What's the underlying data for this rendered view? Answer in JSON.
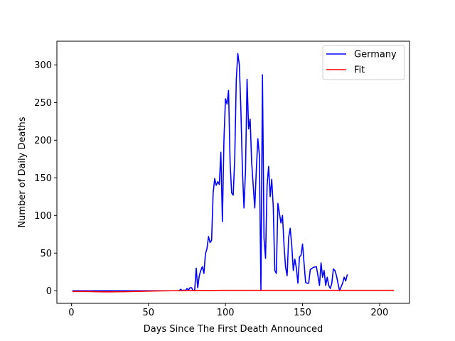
{
  "chart_data": {
    "type": "line",
    "title": "",
    "xlabel": "Days Since The First Death Announced",
    "ylabel": "Number of Daily Deaths",
    "xlim": [
      -9.4,
      219.4
    ],
    "ylim": [
      -16.75,
      331.5
    ],
    "x_ticks": [
      0,
      50,
      100,
      150,
      200
    ],
    "y_ticks": [
      0,
      50,
      100,
      150,
      200,
      250,
      300
    ],
    "grid": false,
    "legend_position": "top-right",
    "series": [
      {
        "name": "Germany",
        "color": "#0000ff",
        "points": [
          [
            1,
            0
          ],
          [
            10,
            0
          ],
          [
            20,
            0
          ],
          [
            30,
            0
          ],
          [
            40,
            0
          ],
          [
            50,
            0
          ],
          [
            60,
            0
          ],
          [
            70,
            0
          ],
          [
            71,
            2
          ],
          [
            72,
            0
          ],
          [
            73,
            1
          ],
          [
            74,
            0
          ],
          [
            75,
            3
          ],
          [
            76,
            1
          ],
          [
            77,
            4
          ],
          [
            78,
            4
          ],
          [
            79,
            0
          ],
          [
            80,
            0
          ],
          [
            81,
            30
          ],
          [
            82,
            4
          ],
          [
            83,
            20
          ],
          [
            84,
            27
          ],
          [
            85,
            32
          ],
          [
            86,
            23
          ],
          [
            87,
            49
          ],
          [
            88,
            56
          ],
          [
            89,
            72
          ],
          [
            90,
            64
          ],
          [
            91,
            67
          ],
          [
            92,
            130
          ],
          [
            93,
            149
          ],
          [
            94,
            140
          ],
          [
            95,
            145
          ],
          [
            96,
            141
          ],
          [
            97,
            184
          ],
          [
            98,
            92
          ],
          [
            99,
            200
          ],
          [
            100,
            255
          ],
          [
            101,
            248
          ],
          [
            102,
            266
          ],
          [
            103,
            170
          ],
          [
            104,
            130
          ],
          [
            105,
            127
          ],
          [
            106,
            175
          ],
          [
            107,
            280
          ],
          [
            108,
            315
          ],
          [
            109,
            300
          ],
          [
            110,
            240
          ],
          [
            111,
            160
          ],
          [
            112,
            110
          ],
          [
            113,
            160
          ],
          [
            114,
            281
          ],
          [
            115,
            215
          ],
          [
            116,
            228
          ],
          [
            117,
            170
          ],
          [
            118,
            140
          ],
          [
            119,
            110
          ],
          [
            120,
            160
          ],
          [
            121,
            202
          ],
          [
            122,
            180
          ],
          [
            123,
            0
          ],
          [
            124,
            287
          ],
          [
            125,
            70
          ],
          [
            126,
            43
          ],
          [
            127,
            140
          ],
          [
            128,
            165
          ],
          [
            129,
            125
          ],
          [
            130,
            148
          ],
          [
            131,
            112
          ],
          [
            132,
            27
          ],
          [
            133,
            23
          ],
          [
            134,
            116
          ],
          [
            135,
            103
          ],
          [
            136,
            90
          ],
          [
            137,
            100
          ],
          [
            138,
            60
          ],
          [
            139,
            31
          ],
          [
            140,
            20
          ],
          [
            141,
            71
          ],
          [
            142,
            83
          ],
          [
            143,
            60
          ],
          [
            144,
            27
          ],
          [
            145,
            42
          ],
          [
            146,
            30
          ],
          [
            147,
            10
          ],
          [
            148,
            45
          ],
          [
            149,
            47
          ],
          [
            150,
            62
          ],
          [
            151,
            36
          ],
          [
            152,
            11
          ],
          [
            153,
            10
          ],
          [
            154,
            10
          ],
          [
            155,
            28
          ],
          [
            157,
            31
          ],
          [
            159,
            32
          ],
          [
            160,
            20
          ],
          [
            161,
            7
          ],
          [
            162,
            37
          ],
          [
            163,
            18
          ],
          [
            164,
            27
          ],
          [
            165,
            7
          ],
          [
            166,
            18
          ],
          [
            167,
            7
          ],
          [
            168,
            3
          ],
          [
            169,
            10
          ],
          [
            170,
            29
          ],
          [
            171,
            27
          ],
          [
            172,
            20
          ],
          [
            173,
            10
          ],
          [
            174,
            0
          ],
          [
            175,
            5
          ],
          [
            176,
            10
          ],
          [
            177,
            18
          ],
          [
            178,
            13
          ],
          [
            179,
            21
          ]
        ]
      },
      {
        "name": "Fit",
        "color": "#ff0000",
        "points": [
          [
            1,
            -1
          ],
          [
            10,
            -1
          ],
          [
            20,
            -1.5
          ],
          [
            25,
            -1.5
          ],
          [
            35,
            -1.3
          ],
          [
            45,
            -0.8
          ],
          [
            55,
            -0.3
          ],
          [
            65,
            0
          ],
          [
            80,
            0.3
          ],
          [
            100,
            0.5
          ],
          [
            125,
            0.5
          ],
          [
            150,
            0.5
          ],
          [
            175,
            0.5
          ],
          [
            200,
            0.5
          ],
          [
            209,
            0.5
          ]
        ]
      }
    ]
  }
}
